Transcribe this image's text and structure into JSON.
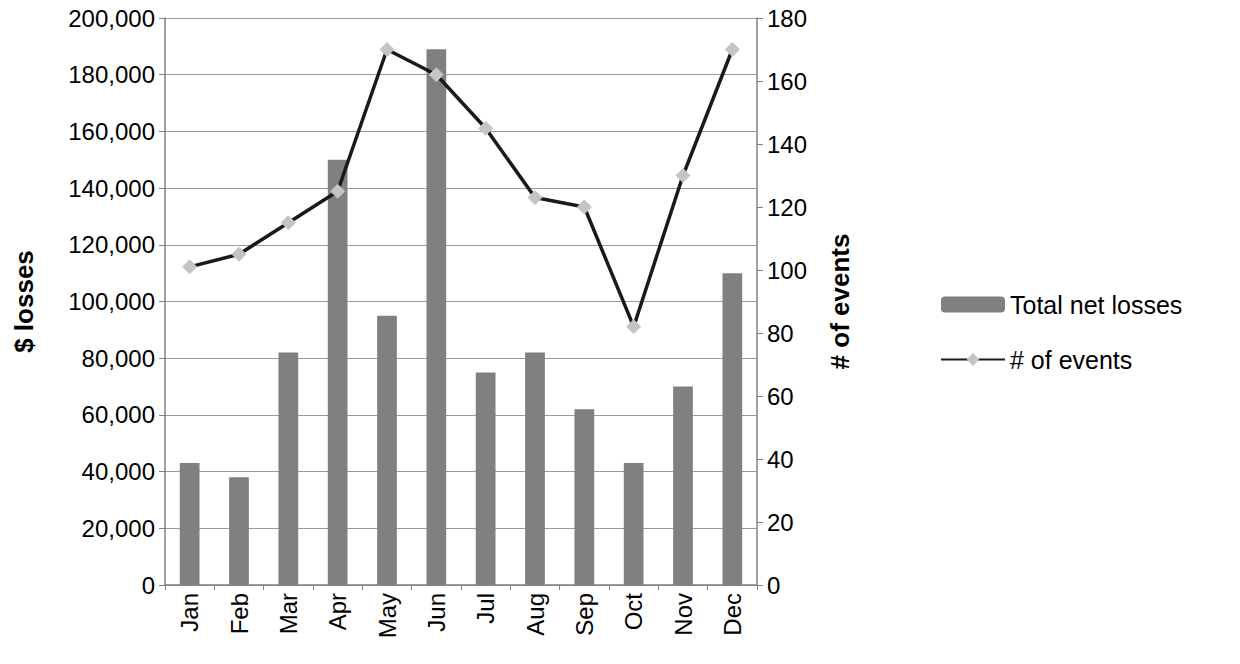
{
  "chart_data": {
    "type": "bar",
    "categories": [
      "Jan",
      "Feb",
      "Mar",
      "Apr",
      "May",
      "Jun",
      "Jul",
      "Aug",
      "Sep",
      "Oct",
      "Nov",
      "Dec"
    ],
    "series": [
      {
        "name": "Total net losses",
        "type": "bar",
        "color": "#808080",
        "values": [
          43000,
          38000,
          82000,
          150000,
          95000,
          189000,
          75000,
          82000,
          62000,
          43000,
          70000,
          110000
        ]
      },
      {
        "name": "# of events",
        "type": "line",
        "axis": "y2",
        "color": "#1a1a1a",
        "marker": "diamond",
        "line_style": "solid",
        "values": [
          101,
          105,
          115,
          125,
          170,
          162,
          145,
          123,
          120,
          82,
          130,
          170
        ]
      }
    ],
    "ylabel": "$ losses",
    "y2label": "# of events",
    "ylim": [
      0,
      200000
    ],
    "yticks": [
      0,
      {
        "value": 20000,
        "label": "20,000"
      },
      {
        "value": 40000,
        "label": "40,000"
      },
      {
        "value": 60000,
        "label": "60,000"
      },
      {
        "value": 80000,
        "label": "80,000"
      },
      {
        "value": 100000,
        "label": "100,000"
      },
      {
        "value": 120000,
        "label": "120,000"
      },
      {
        "value": 140000,
        "label": "140,000"
      },
      {
        "value": 160000,
        "label": "160,000"
      },
      {
        "value": 180000,
        "label": "180,000"
      },
      {
        "value": 200000,
        "label": "200,000"
      }
    ],
    "y2lim": [
      0,
      180
    ],
    "y2ticks": [
      0,
      20,
      40,
      60,
      80,
      100,
      120,
      140,
      160,
      180
    ],
    "grid": true,
    "legend": "right"
  }
}
